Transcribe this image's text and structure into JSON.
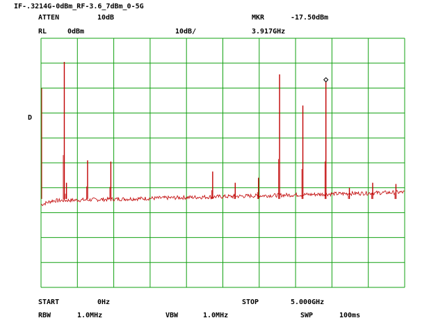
{
  "screen": {
    "title": "IF-.3214G-0dBm_RF-3.6_7dBm_0-5G",
    "atten_label": "ATTEN",
    "atten_value": "10dB",
    "mkr_label": "MKR",
    "mkr_value": "-17.50dBm",
    "rl_label": "RL",
    "rl_value": "0dBm",
    "scale_value": "10dB/",
    "mkr_freq": "3.917GHz",
    "detector_label": "D",
    "start_label": "START",
    "start_value": "0Hz",
    "stop_label": "STOP",
    "stop_value": "5.000GHz",
    "rbw_label": "RBW",
    "rbw_value": "1.0MHz",
    "vbw_label": "VBW",
    "vbw_value": "1.0MHz",
    "swp_label": "SWP",
    "swp_value": "100ms"
  },
  "colors": {
    "grid": "#10a010",
    "trace": "#c00000",
    "marker": "#000000",
    "text": "#000000",
    "background": "#ffffff"
  },
  "chart_data": {
    "type": "line",
    "x_unit": "GHz",
    "y_unit": "dBm",
    "xlim": [
      0,
      5.0
    ],
    "ylim": [
      -100,
      0
    ],
    "grid": true,
    "noise_floor_dBm": -63.5,
    "peaks": [
      {
        "freq_ghz": 0.32,
        "level_dBm": -9.5
      },
      {
        "freq_ghz": 0.35,
        "level_dBm": -58
      },
      {
        "freq_ghz": 0.64,
        "level_dBm": -49
      },
      {
        "freq_ghz": 0.96,
        "level_dBm": -49.5
      },
      {
        "freq_ghz": 2.36,
        "level_dBm": -53.5
      },
      {
        "freq_ghz": 2.67,
        "level_dBm": -58
      },
      {
        "freq_ghz": 2.99,
        "level_dBm": -56
      },
      {
        "freq_ghz": 3.28,
        "level_dBm": -14.5
      },
      {
        "freq_ghz": 3.6,
        "level_dBm": -27
      },
      {
        "freq_ghz": 3.917,
        "level_dBm": -17.5
      },
      {
        "freq_ghz": 4.24,
        "level_dBm": -60
      },
      {
        "freq_ghz": 4.56,
        "level_dBm": -58
      },
      {
        "freq_ghz": 4.88,
        "level_dBm": -58.5
      }
    ],
    "marker": {
      "freq_ghz": 3.917,
      "level_dBm": -17.5
    }
  }
}
